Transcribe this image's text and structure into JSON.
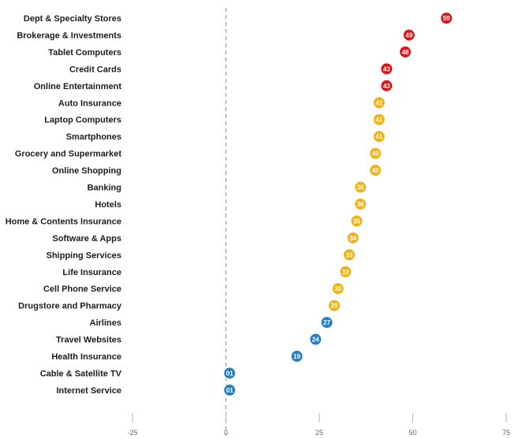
{
  "chart_data": {
    "type": "scatter",
    "orientation": "horizontal-dot",
    "title": "",
    "xlabel": "",
    "ylabel": "",
    "categories": [
      "Dept & Specialty Stores",
      "Brokerage & Investments",
      "Tablet Computers",
      "Credit Cards",
      "Online Entertainment",
      "Auto Insurance",
      "Laptop Computers",
      "Smartphones",
      "Grocery and Supermarket",
      "Online Shopping",
      "Banking",
      "Hotels",
      "Home & Contents Insurance",
      "Software & Apps",
      "Shipping Services",
      "Life Insurance",
      "Cell Phone Service",
      "Drugstore and Pharmacy",
      "Airlines",
      "Travel Websites",
      "Health Insurance",
      "Cable & Satellite TV",
      "Internet Service"
    ],
    "values": [
      59,
      49,
      48,
      43,
      43,
      41,
      41,
      41,
      40,
      40,
      36,
      36,
      35,
      34,
      33,
      32,
      30,
      29,
      27,
      24,
      19,
      1,
      1
    ],
    "value_labels": [
      "59",
      "49",
      "48",
      "43",
      "43",
      "41",
      "41",
      "41",
      "40",
      "40",
      "36",
      "36",
      "35",
      "34",
      "33",
      "32",
      "30",
      "29",
      "27",
      "24",
      "19",
      "01",
      "01"
    ],
    "xlim": [
      -25,
      75
    ],
    "xticks": [
      -25,
      0,
      25,
      50,
      75
    ],
    "xtick_labels": [
      "-25",
      "0",
      "25",
      "50",
      "75"
    ],
    "zero_line": "dashed",
    "grid": false,
    "colors": {
      "high": "#d7191c",
      "mid": "#f0b21a",
      "low": "#2a7fc1"
    },
    "color_thresholds": {
      "high_min": 42,
      "mid_min": 28
    }
  }
}
